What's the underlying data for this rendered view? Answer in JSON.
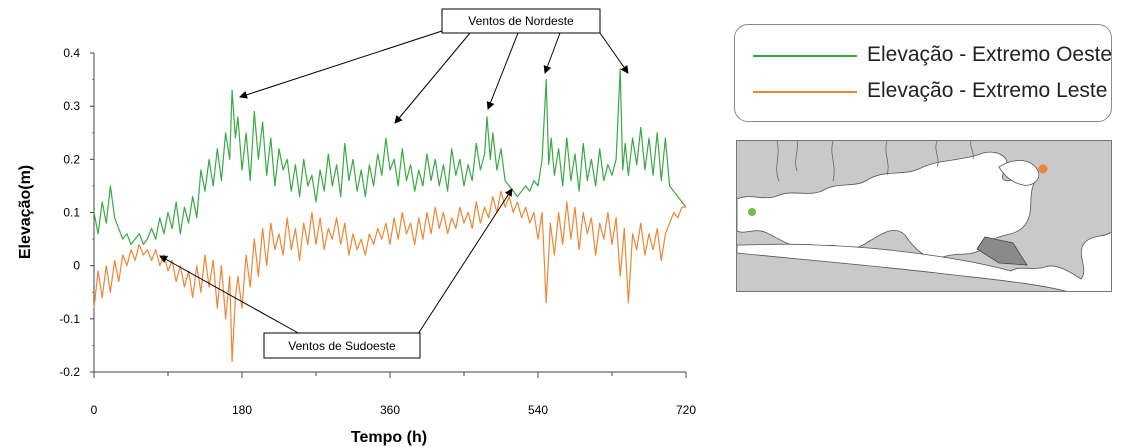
{
  "chart_data": {
    "type": "line",
    "xlabel": "Tempo (h)",
    "ylabel": "Elevação(m)",
    "xlim": [
      0,
      720
    ],
    "ylim": [
      -0.2,
      0.4
    ],
    "xticks": [
      0,
      180,
      360,
      540,
      720
    ],
    "yticks": [
      -0.2,
      -0.1,
      0,
      0.1,
      0.2,
      0.3,
      0.4
    ],
    "ytick_labels": [
      "-0.2",
      "-0.1",
      "0",
      "0.1",
      "0.2",
      "0.3",
      "0.4"
    ],
    "grid": false,
    "legend_position": "top-right",
    "series": [
      {
        "name": "Elevação - Extremo Oeste",
        "color": "#3aa845",
        "x": [
          0,
          5,
          10,
          15,
          20,
          25,
          30,
          35,
          40,
          45,
          50,
          55,
          60,
          65,
          70,
          75,
          80,
          85,
          90,
          95,
          100,
          105,
          110,
          115,
          120,
          125,
          130,
          135,
          140,
          145,
          150,
          155,
          160,
          165,
          168,
          172,
          175,
          180,
          185,
          190,
          195,
          200,
          205,
          210,
          215,
          220,
          225,
          230,
          235,
          240,
          245,
          250,
          255,
          260,
          265,
          270,
          275,
          280,
          285,
          290,
          295,
          300,
          305,
          310,
          315,
          320,
          325,
          330,
          335,
          340,
          345,
          350,
          355,
          360,
          365,
          370,
          375,
          380,
          385,
          390,
          395,
          400,
          405,
          410,
          415,
          420,
          425,
          430,
          435,
          440,
          445,
          450,
          455,
          460,
          465,
          470,
          475,
          478,
          482,
          485,
          490,
          495,
          500,
          505,
          510,
          515,
          520,
          525,
          530,
          535,
          540,
          545,
          550,
          553,
          556,
          560,
          565,
          570,
          575,
          580,
          585,
          590,
          595,
          600,
          605,
          610,
          615,
          620,
          625,
          630,
          635,
          640,
          643,
          646,
          650,
          655,
          660,
          665,
          670,
          675,
          680,
          685,
          690,
          695,
          700,
          705,
          710,
          715,
          720
        ],
        "values": [
          0.1,
          0.06,
          0.12,
          0.08,
          0.15,
          0.09,
          0.07,
          0.05,
          0.06,
          0.04,
          0.05,
          0.06,
          0.04,
          0.05,
          0.07,
          0.05,
          0.09,
          0.06,
          0.1,
          0.07,
          0.12,
          0.06,
          0.11,
          0.08,
          0.13,
          0.09,
          0.18,
          0.14,
          0.2,
          0.15,
          0.22,
          0.16,
          0.25,
          0.2,
          0.33,
          0.24,
          0.28,
          0.18,
          0.25,
          0.16,
          0.29,
          0.2,
          0.27,
          0.17,
          0.24,
          0.15,
          0.22,
          0.18,
          0.2,
          0.14,
          0.19,
          0.13,
          0.2,
          0.15,
          0.17,
          0.12,
          0.18,
          0.14,
          0.21,
          0.15,
          0.19,
          0.13,
          0.23,
          0.16,
          0.2,
          0.14,
          0.18,
          0.13,
          0.19,
          0.15,
          0.21,
          0.17,
          0.24,
          0.18,
          0.2,
          0.15,
          0.22,
          0.16,
          0.19,
          0.14,
          0.18,
          0.15,
          0.21,
          0.16,
          0.2,
          0.15,
          0.19,
          0.14,
          0.22,
          0.17,
          0.2,
          0.15,
          0.19,
          0.16,
          0.23,
          0.18,
          0.21,
          0.28,
          0.2,
          0.25,
          0.18,
          0.22,
          0.16,
          0.15,
          0.14,
          0.13,
          0.14,
          0.15,
          0.14,
          0.16,
          0.15,
          0.2,
          0.35,
          0.19,
          0.24,
          0.17,
          0.22,
          0.15,
          0.24,
          0.16,
          0.21,
          0.14,
          0.23,
          0.16,
          0.2,
          0.15,
          0.22,
          0.16,
          0.19,
          0.17,
          0.2,
          0.37,
          0.18,
          0.23,
          0.17,
          0.24,
          0.19,
          0.26,
          0.18,
          0.24,
          0.17,
          0.25,
          0.16,
          0.24,
          0.15,
          0.14,
          0.13,
          0.12,
          0.11
        ]
      },
      {
        "name": "Elevação - Extremo Leste",
        "color": "#ee8637",
        "x": [
          0,
          5,
          10,
          15,
          20,
          25,
          30,
          35,
          40,
          45,
          50,
          55,
          60,
          65,
          70,
          75,
          80,
          85,
          90,
          95,
          100,
          105,
          110,
          115,
          120,
          125,
          130,
          135,
          140,
          145,
          150,
          155,
          160,
          165,
          168,
          172,
          175,
          180,
          185,
          190,
          195,
          200,
          205,
          210,
          215,
          220,
          225,
          230,
          235,
          240,
          245,
          250,
          255,
          260,
          265,
          270,
          275,
          280,
          285,
          290,
          295,
          300,
          305,
          310,
          315,
          320,
          325,
          330,
          335,
          340,
          345,
          350,
          355,
          360,
          365,
          370,
          375,
          380,
          385,
          390,
          395,
          400,
          405,
          410,
          415,
          420,
          425,
          430,
          435,
          440,
          445,
          450,
          455,
          460,
          465,
          470,
          475,
          480,
          485,
          490,
          495,
          500,
          505,
          510,
          515,
          520,
          525,
          530,
          535,
          540,
          545,
          550,
          555,
          560,
          565,
          570,
          575,
          580,
          585,
          590,
          595,
          600,
          605,
          610,
          615,
          620,
          625,
          630,
          635,
          640,
          645,
          650,
          655,
          660,
          665,
          670,
          675,
          680,
          685,
          690,
          695,
          700,
          705,
          710,
          715,
          720
        ],
        "values": [
          -0.08,
          -0.01,
          -0.06,
          0.0,
          -0.05,
          0.01,
          -0.03,
          0.02,
          0.0,
          0.03,
          0.01,
          0.04,
          0.02,
          0.03,
          0.01,
          0.03,
          0.0,
          0.02,
          -0.01,
          0.01,
          -0.03,
          0.0,
          -0.04,
          -0.01,
          -0.06,
          0.0,
          -0.05,
          0.02,
          -0.04,
          0.01,
          -0.08,
          0.0,
          -0.1,
          -0.02,
          -0.18,
          -0.06,
          -0.02,
          -0.08,
          0.02,
          -0.04,
          0.05,
          -0.02,
          0.07,
          0.0,
          0.08,
          0.03,
          0.06,
          0.02,
          0.09,
          0.03,
          0.07,
          0.01,
          0.08,
          0.04,
          0.1,
          0.04,
          0.09,
          0.03,
          0.07,
          0.05,
          0.09,
          0.04,
          0.08,
          0.02,
          0.06,
          0.03,
          0.05,
          0.02,
          0.06,
          0.04,
          0.07,
          0.05,
          0.08,
          0.04,
          0.09,
          0.05,
          0.1,
          0.06,
          0.08,
          0.04,
          0.09,
          0.05,
          0.1,
          0.06,
          0.11,
          0.07,
          0.1,
          0.06,
          0.09,
          0.07,
          0.11,
          0.08,
          0.1,
          0.07,
          0.12,
          0.08,
          0.11,
          0.09,
          0.13,
          0.1,
          0.14,
          0.11,
          0.13,
          0.1,
          0.12,
          0.09,
          0.11,
          0.08,
          0.1,
          0.05,
          0.1,
          -0.07,
          0.08,
          0.02,
          0.1,
          0.04,
          0.12,
          0.05,
          0.11,
          0.03,
          0.1,
          0.06,
          0.09,
          0.02,
          0.08,
          0.05,
          0.1,
          0.04,
          0.09,
          -0.02,
          0.07,
          -0.07,
          0.06,
          0.03,
          0.08,
          0.02,
          0.06,
          0.03,
          0.07,
          0.01,
          0.06,
          0.08,
          0.1,
          0.09,
          0.11,
          0.11
        ]
      }
    ],
    "annotations": [
      {
        "text": "Ventos de Nordeste"
      },
      {
        "text": "Ventos de Sudoeste"
      }
    ]
  },
  "map": {
    "markers": [
      {
        "name": "Extremo Oeste",
        "color": "#7ab648"
      },
      {
        "name": "Extremo Leste",
        "color": "#ee8637"
      }
    ]
  }
}
